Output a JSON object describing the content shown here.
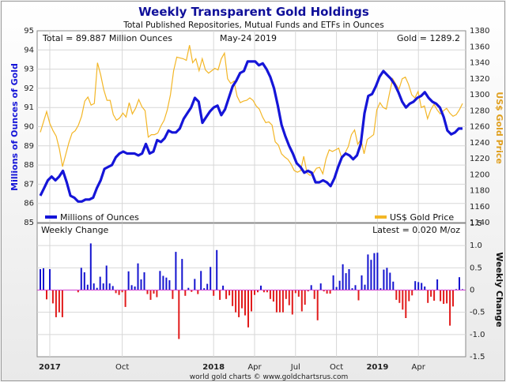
{
  "header": {
    "title": "Weekly Transparent Gold Holdings",
    "subtitle": "Total Published Repositories, Mutual Funds and ETFs in Ounces",
    "total": "Total = 89.887 Million Ounces",
    "date": "May-24  2019",
    "gold": "Gold = 1289.2",
    "lower_title": "Weekly Change",
    "latest": "Latest = 0.020 M/oz",
    "footer": "world gold charts © www.goldchartsrus.com"
  },
  "colors": {
    "holdings": "#1515d8",
    "price": "#f3b626",
    "positive": "#1313cf",
    "negative": "#e11b1b",
    "zero_line": "#d040d0",
    "title": "#10109a"
  },
  "chart_data": [
    {
      "type": "line",
      "title": "Weekly Transparent Gold Holdings",
      "xlabel": "",
      "ylabel": "Millions of Ounces of Gold",
      "y2label": "US$ Gold Price",
      "ylim": [
        85,
        95
      ],
      "y2lim": [
        1140,
        1380
      ],
      "grid": true,
      "x_ticks": [
        "2017",
        "Oct",
        "2018",
        "Apr",
        "Jul",
        "Oct",
        "2019",
        "Apr"
      ],
      "x_tick_weeks": [
        3,
        26,
        55,
        68,
        81,
        94,
        107,
        120
      ],
      "y_ticks": [
        "85",
        "86",
        "87",
        "88",
        "89",
        "90",
        "91",
        "92",
        "93",
        "94",
        "95"
      ],
      "y2_ticks": [
        "1140",
        "1160",
        "1180",
        "1200",
        "1220",
        "1240",
        "1260",
        "1280",
        "1300",
        "1320",
        "1340",
        "1360",
        "1380"
      ],
      "series": [
        {
          "name": "Millions of Ounces",
          "axis": "left",
          "values": [
            86.4,
            86.8,
            87.2,
            87.4,
            87.2,
            87.4,
            87.7,
            87.1,
            86.4,
            86.3,
            86.1,
            86.1,
            86.2,
            86.2,
            86.3,
            86.8,
            87.2,
            87.8,
            87.9,
            88.0,
            88.4,
            88.6,
            88.7,
            88.6,
            88.6,
            88.6,
            88.5,
            88.6,
            89.1,
            88.6,
            88.7,
            89.3,
            89.2,
            89.4,
            89.8,
            89.7,
            89.7,
            89.9,
            90.4,
            90.7,
            91.0,
            91.5,
            91.3,
            90.2,
            90.5,
            90.8,
            91.0,
            91.1,
            90.6,
            90.9,
            91.5,
            92.1,
            92.4,
            92.8,
            92.9,
            93.4,
            93.4,
            93.4,
            93.2,
            93.3,
            93.0,
            92.6,
            92.0,
            91.1,
            90.1,
            89.5,
            89.0,
            88.6,
            88.1,
            87.9,
            87.6,
            87.7,
            87.6,
            87.1,
            87.1,
            87.2,
            87.1,
            86.9,
            87.3,
            87.9,
            88.4,
            88.6,
            88.5,
            88.3,
            88.5,
            89.1,
            90.7,
            91.6,
            91.7,
            92.1,
            92.6,
            92.9,
            92.7,
            92.5,
            92.2,
            91.8,
            91.3,
            91.0,
            91.2,
            91.3,
            91.5,
            91.6,
            91.8,
            91.5,
            91.3,
            91.2,
            91.0,
            90.5,
            89.8,
            89.6,
            89.7,
            89.9,
            89.9
          ]
        },
        {
          "name": "US$ Gold Price",
          "axis": "right",
          "values": [
            1253,
            1266,
            1279,
            1264,
            1255,
            1248,
            1232,
            1210,
            1225,
            1240,
            1252,
            1255,
            1262,
            1273,
            1292,
            1297,
            1287,
            1289,
            1340,
            1325,
            1306,
            1293,
            1293,
            1275,
            1268,
            1271,
            1277,
            1272,
            1290,
            1276,
            1283,
            1294,
            1285,
            1280,
            1247,
            1250,
            1250,
            1252,
            1261,
            1268,
            1281,
            1300,
            1330,
            1347,
            1346,
            1345,
            1343,
            1362,
            1340,
            1345,
            1330,
            1345,
            1331,
            1327,
            1330,
            1333,
            1331,
            1345,
            1352,
            1320,
            1314,
            1317,
            1298,
            1290,
            1292,
            1293,
            1296,
            1293,
            1286,
            1282,
            1272,
            1265,
            1266,
            1262,
            1241,
            1237,
            1226,
            1222,
            1219,
            1213,
            1205,
            1203,
            1205,
            1223,
            1202,
            1199,
            1202,
            1208,
            1209,
            1201,
            1220,
            1231,
            1229,
            1231,
            1233,
            1220,
            1227,
            1235,
            1250,
            1256,
            1238,
            1244,
            1226,
            1244,
            1247,
            1250,
            1281,
            1290,
            1284,
            1282,
            1302,
            1320,
            1313,
            1307,
            1320,
            1322,
            1313,
            1300,
            1296,
            1304,
            1284,
            1286,
            1270,
            1281,
            1288,
            1281,
            1276,
            1280,
            1283,
            1277,
            1273,
            1275,
            1281,
            1289
          ]
        }
      ]
    },
    {
      "type": "bar",
      "title": "Weekly Change",
      "ylabel": "Weekly Change",
      "ylim": [
        -1.5,
        1.5
      ],
      "y_ticks": [
        "1.5",
        "1.0",
        "0.5",
        "0",
        "-0.5",
        "-1.0",
        "-1.5"
      ],
      "x_ticks": [
        "2017",
        "Oct",
        "2018",
        "Apr",
        "Jul",
        "Oct",
        "2019",
        "Apr"
      ],
      "values": [
        0.47,
        0.49,
        -0.21,
        0.47,
        -0.3,
        -0.61,
        -0.5,
        -0.61,
        0,
        0,
        0,
        0,
        -0.05,
        0.5,
        0.4,
        0.12,
        1.05,
        0.15,
        0.05,
        0.3,
        0.15,
        0.55,
        0.15,
        0.09,
        -0.07,
        -0.11,
        -0.05,
        -0.38,
        0.42,
        0.11,
        0.08,
        0.6,
        0.24,
        0.4,
        -0.09,
        -0.22,
        -0.08,
        -0.16,
        0.43,
        0.32,
        0.28,
        0.22,
        -0.2,
        0.86,
        -1.1,
        0.7,
        -0.13,
        0.05,
        -0.04,
        0.25,
        -0.09,
        0.43,
        0.04,
        0.14,
        0.52,
        -0.13,
        0.9,
        -0.22,
        0.1,
        -0.2,
        -0.12,
        -0.36,
        -0.5,
        -0.61,
        -0.41,
        -0.57,
        -0.84,
        -0.48,
        -0.11,
        -0.05,
        0.1,
        -0.05,
        -0.05,
        -0.2,
        -0.26,
        -0.5,
        -0.5,
        -0.5,
        -0.2,
        -0.34,
        -0.55,
        -0.07,
        -0.15,
        -0.48,
        -0.33,
        -0.03,
        0.11,
        -0.2,
        -0.68,
        0.15,
        -0.03,
        -0.08,
        -0.08,
        0.33,
        0.07,
        0.21,
        0.58,
        0.38,
        0.47,
        0.04,
        0.11,
        -0.23,
        0.33,
        0.12,
        0.8,
        0.68,
        0.83,
        0.84,
        0.04,
        0.46,
        0.5,
        0.39,
        0.19,
        -0.22,
        -0.29,
        -0.44,
        -0.63,
        -0.25,
        -0.12,
        0.2,
        0.18,
        0.16,
        0.08,
        -0.29,
        -0.15,
        -0.24,
        0.24,
        -0.25,
        -0.31,
        -0.3,
        -0.8,
        -0.37,
        0.02,
        0.29,
        0.02
      ]
    }
  ]
}
